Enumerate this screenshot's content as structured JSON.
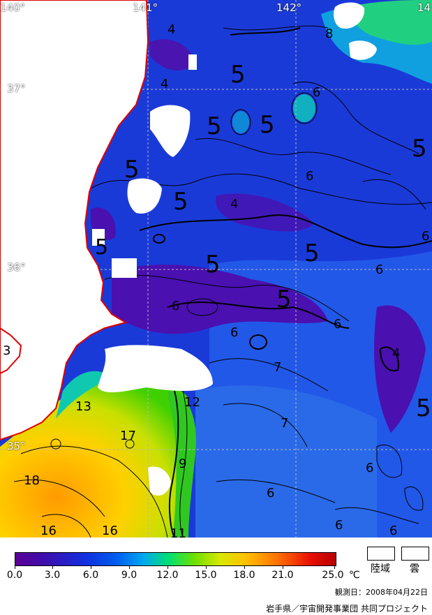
{
  "map": {
    "lon_labels": [
      "140°",
      "141°",
      "142°",
      "14"
    ],
    "lat_labels": [
      "37°",
      "36°",
      "35°"
    ],
    "contour_labels": [
      "4",
      "4",
      "5",
      "5",
      "5",
      "5",
      "5",
      "5",
      "5",
      "5",
      "5",
      "5",
      "6",
      "6",
      "6",
      "6",
      "6",
      "6",
      "6",
      "6",
      "6",
      "6",
      "6",
      "7",
      "7",
      "8",
      "4",
      "4",
      "3",
      "12",
      "13",
      "17",
      "18",
      "9",
      "11",
      "16",
      "16"
    ]
  },
  "colorbar": {
    "labels": [
      "0.0",
      "3.0",
      "6.0",
      "9.0",
      "12.0",
      "15.0",
      "18.0",
      "21.0",
      "25.0"
    ],
    "unit": "℃"
  },
  "legend": {
    "land": "陸域",
    "cloud": "雲"
  },
  "observation_date": "観測日：2008年04月22日",
  "credit": "岩手県／宇宙開発事業団 共同プロジェクト",
  "colors": {
    "land": "#ffffff",
    "coast": "#e00000",
    "cloud": "#ffffff",
    "grid": "#b0b0b0"
  }
}
